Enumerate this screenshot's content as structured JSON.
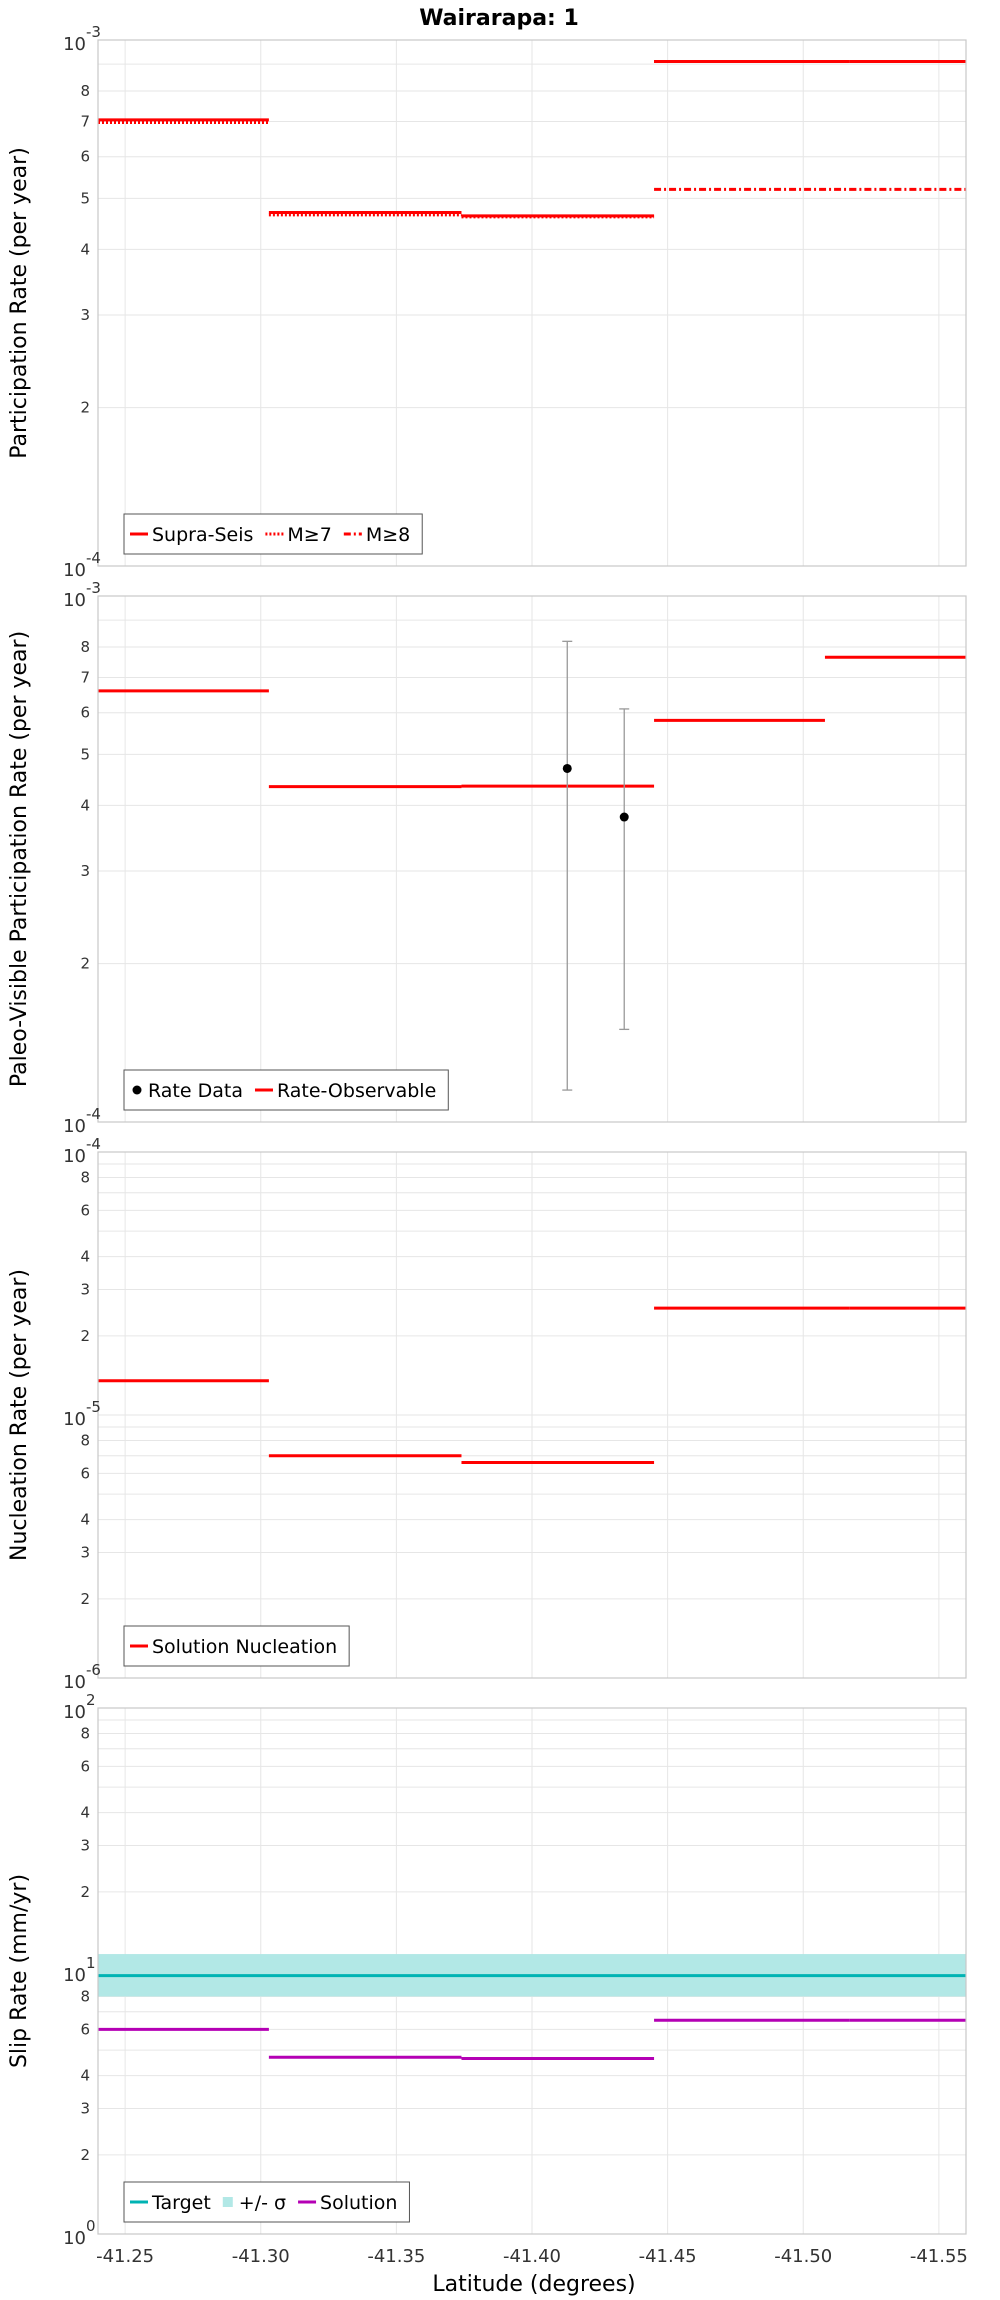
{
  "chart_data": {
    "type": "line",
    "title": "Wairarapa: 1",
    "xlabel": "Latitude (degrees)",
    "xlim": [
      -41.24,
      -41.56
    ],
    "x_ticks": [
      {
        "value": -41.25,
        "label": "-41.25"
      },
      {
        "value": -41.3,
        "label": "-41.30"
      },
      {
        "value": -41.35,
        "label": "-41.35"
      },
      {
        "value": -41.4,
        "label": "-41.40"
      },
      {
        "value": -41.45,
        "label": "-41.45"
      },
      {
        "value": -41.5,
        "label": "-41.50"
      },
      {
        "value": -41.55,
        "label": "-41.55"
      }
    ],
    "panels": [
      {
        "id": "participation",
        "ylabel": "Participation Rate (per year)",
        "yscale": "log",
        "ylim": [
          0.0001,
          0.001
        ],
        "decade_labels": [
          {
            "value": 0.0001,
            "base": "10",
            "exp": "-4"
          },
          {
            "value": 0.001,
            "base": "10",
            "exp": "-3"
          }
        ],
        "minor_labels": [
          {
            "value": 0.0002,
            "label": "2"
          },
          {
            "value": 0.0003,
            "label": "3"
          },
          {
            "value": 0.0004,
            "label": "4"
          },
          {
            "value": 0.0005,
            "label": "5"
          },
          {
            "value": 0.0006,
            "label": "6"
          },
          {
            "value": 0.0007,
            "label": "7"
          },
          {
            "value": 0.0008,
            "label": "8"
          }
        ],
        "series": [
          {
            "name": "Supra-Seis",
            "color": "#ff0000",
            "dash": "solid",
            "segments": [
              [
                -41.24,
                -41.303,
                0.000705
              ],
              [
                -41.303,
                -41.374,
                0.00047
              ],
              [
                -41.374,
                -41.445,
                0.000463
              ],
              [
                -41.445,
                -41.517,
                0.00091
              ],
              [
                -41.517,
                -41.56,
                0.00091
              ]
            ]
          },
          {
            "name": "M≥7",
            "color": "#ff0000",
            "dash": "dotted",
            "segments": [
              [
                -41.24,
                -41.303,
                0.000697
              ],
              [
                -41.303,
                -41.374,
                0.000465
              ],
              [
                -41.374,
                -41.445,
                0.000461
              ],
              [
                -41.445,
                -41.517,
                0.00091
              ],
              [
                -41.517,
                -41.56,
                0.00091
              ]
            ]
          },
          {
            "name": "M≥8",
            "color": "#ff0000",
            "dash": "dashdot",
            "segments": [
              [
                -41.445,
                -41.517,
                0.00052
              ],
              [
                -41.517,
                -41.56,
                0.00052
              ]
            ]
          }
        ],
        "legend": [
          "Supra-Seis",
          "M≥7",
          "M≥8"
        ]
      },
      {
        "id": "paleo",
        "ylabel": "Paleo-Visible Participation Rate (per year)",
        "yscale": "log",
        "ylim": [
          0.0001,
          0.001
        ],
        "decade_labels": [
          {
            "value": 0.0001,
            "base": "10",
            "exp": "-4"
          },
          {
            "value": 0.001,
            "base": "10",
            "exp": "-3"
          }
        ],
        "minor_labels": [
          {
            "value": 0.0002,
            "label": "2"
          },
          {
            "value": 0.0003,
            "label": "3"
          },
          {
            "value": 0.0004,
            "label": "4"
          },
          {
            "value": 0.0005,
            "label": "5"
          },
          {
            "value": 0.0006,
            "label": "6"
          },
          {
            "value": 0.0007,
            "label": "7"
          },
          {
            "value": 0.0008,
            "label": "8"
          }
        ],
        "series": [
          {
            "name": "Rate-Observable",
            "color": "#ff0000",
            "dash": "solid",
            "segments": [
              [
                -41.24,
                -41.303,
                0.00066
              ],
              [
                -41.303,
                -41.374,
                0.000434
              ],
              [
                -41.374,
                -41.445,
                0.000435
              ],
              [
                -41.445,
                -41.508,
                0.00058
              ],
              [
                -41.508,
                -41.56,
                0.000765
              ]
            ]
          }
        ],
        "points": [
          {
            "name": "Rate Data",
            "x": -41.413,
            "y": 0.00047,
            "low": 0.000115,
            "high": 0.00082
          },
          {
            "name": "Rate Data",
            "x": -41.434,
            "y": 0.00038,
            "low": 0.00015,
            "high": 0.00061
          }
        ],
        "legend": [
          "Rate Data",
          "Rate-Observable"
        ]
      },
      {
        "id": "nucleation",
        "ylabel": "Nucleation Rate (per year)",
        "yscale": "log",
        "ylim": [
          1e-06,
          0.0001
        ],
        "decade_labels": [
          {
            "value": 1e-06,
            "base": "10",
            "exp": "-6"
          },
          {
            "value": 1e-05,
            "base": "10",
            "exp": "-5"
          },
          {
            "value": 0.0001,
            "base": "10",
            "exp": "-4"
          }
        ],
        "minor_labels": [
          {
            "value": 2e-06,
            "label": "2"
          },
          {
            "value": 3e-06,
            "label": "3"
          },
          {
            "value": 4e-06,
            "label": "4"
          },
          {
            "value": 6e-06,
            "label": "6"
          },
          {
            "value": 8e-06,
            "label": "8"
          },
          {
            "value": 2e-05,
            "label": "2"
          },
          {
            "value": 3e-05,
            "label": "3"
          },
          {
            "value": 4e-05,
            "label": "4"
          },
          {
            "value": 6e-05,
            "label": "6"
          },
          {
            "value": 8e-05,
            "label": "8"
          }
        ],
        "series": [
          {
            "name": "Solution Nucleation",
            "color": "#ff0000",
            "dash": "solid",
            "segments": [
              [
                -41.24,
                -41.303,
                1.35e-05
              ],
              [
                -41.303,
                -41.374,
                7e-06
              ],
              [
                -41.374,
                -41.445,
                6.6e-06
              ],
              [
                -41.445,
                -41.517,
                2.55e-05
              ],
              [
                -41.517,
                -41.56,
                2.55e-05
              ]
            ]
          }
        ],
        "legend": [
          "Solution Nucleation"
        ]
      },
      {
        "id": "slip",
        "ylabel": "Slip Rate (mm/yr)",
        "yscale": "log",
        "ylim": [
          1,
          100
        ],
        "decade_labels": [
          {
            "value": 1,
            "base": "10",
            "exp": "0"
          },
          {
            "value": 10,
            "base": "10",
            "exp": "1"
          },
          {
            "value": 100,
            "base": "10",
            "exp": "2"
          }
        ],
        "minor_labels": [
          {
            "value": 2,
            "label": "2"
          },
          {
            "value": 3,
            "label": "3"
          },
          {
            "value": 4,
            "label": "4"
          },
          {
            "value": 6,
            "label": "6"
          },
          {
            "value": 8,
            "label": "8"
          },
          {
            "value": 20,
            "label": "2"
          },
          {
            "value": 30,
            "label": "3"
          },
          {
            "value": 40,
            "label": "4"
          },
          {
            "value": 60,
            "label": "6"
          },
          {
            "value": 80,
            "label": "8"
          }
        ],
        "band": {
          "name": "+/- σ",
          "color": "#b2e8e6",
          "low": 8.0,
          "high": 11.6
        },
        "series": [
          {
            "name": "Target",
            "color": "#00b3b3",
            "dash": "solid",
            "segments": [
              [
                -41.24,
                -41.56,
                9.6
              ]
            ]
          },
          {
            "name": "Solution",
            "color": "#b400b4",
            "dash": "solid",
            "segments": [
              [
                -41.24,
                -41.303,
                6.0
              ],
              [
                -41.303,
                -41.374,
                4.7
              ],
              [
                -41.374,
                -41.445,
                4.65
              ],
              [
                -41.445,
                -41.517,
                6.5
              ],
              [
                -41.517,
                -41.56,
                6.5
              ]
            ]
          }
        ],
        "legend": [
          "Target",
          "+/- σ",
          "Solution"
        ]
      }
    ]
  }
}
